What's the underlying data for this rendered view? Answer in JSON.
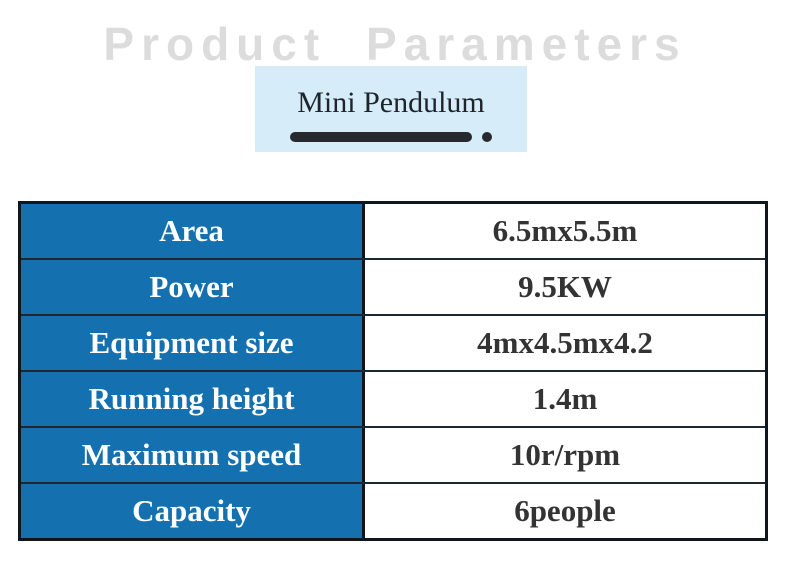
{
  "header": {
    "title": "Product Parameters"
  },
  "product": {
    "name": "Mini Pendulum"
  },
  "table": {
    "rows": [
      {
        "label": "Area",
        "value": "6.5mx5.5m"
      },
      {
        "label": "Power",
        "value": "9.5KW"
      },
      {
        "label": "Equipment size",
        "value": "4mx4.5mx4.2"
      },
      {
        "label": "Running height",
        "value": "1.4m"
      },
      {
        "label": "Maximum speed",
        "value": "10r/rpm"
      },
      {
        "label": "Capacity",
        "value": "6people"
      }
    ]
  },
  "colors": {
    "label_column_blue": "#1470ae",
    "badge_light_blue": "#d6ecf9",
    "title_gray": "#dcdcdc",
    "table_border_dark": "#10161d",
    "value_text_dark": "#333333",
    "underline_dark": "#26292e"
  }
}
